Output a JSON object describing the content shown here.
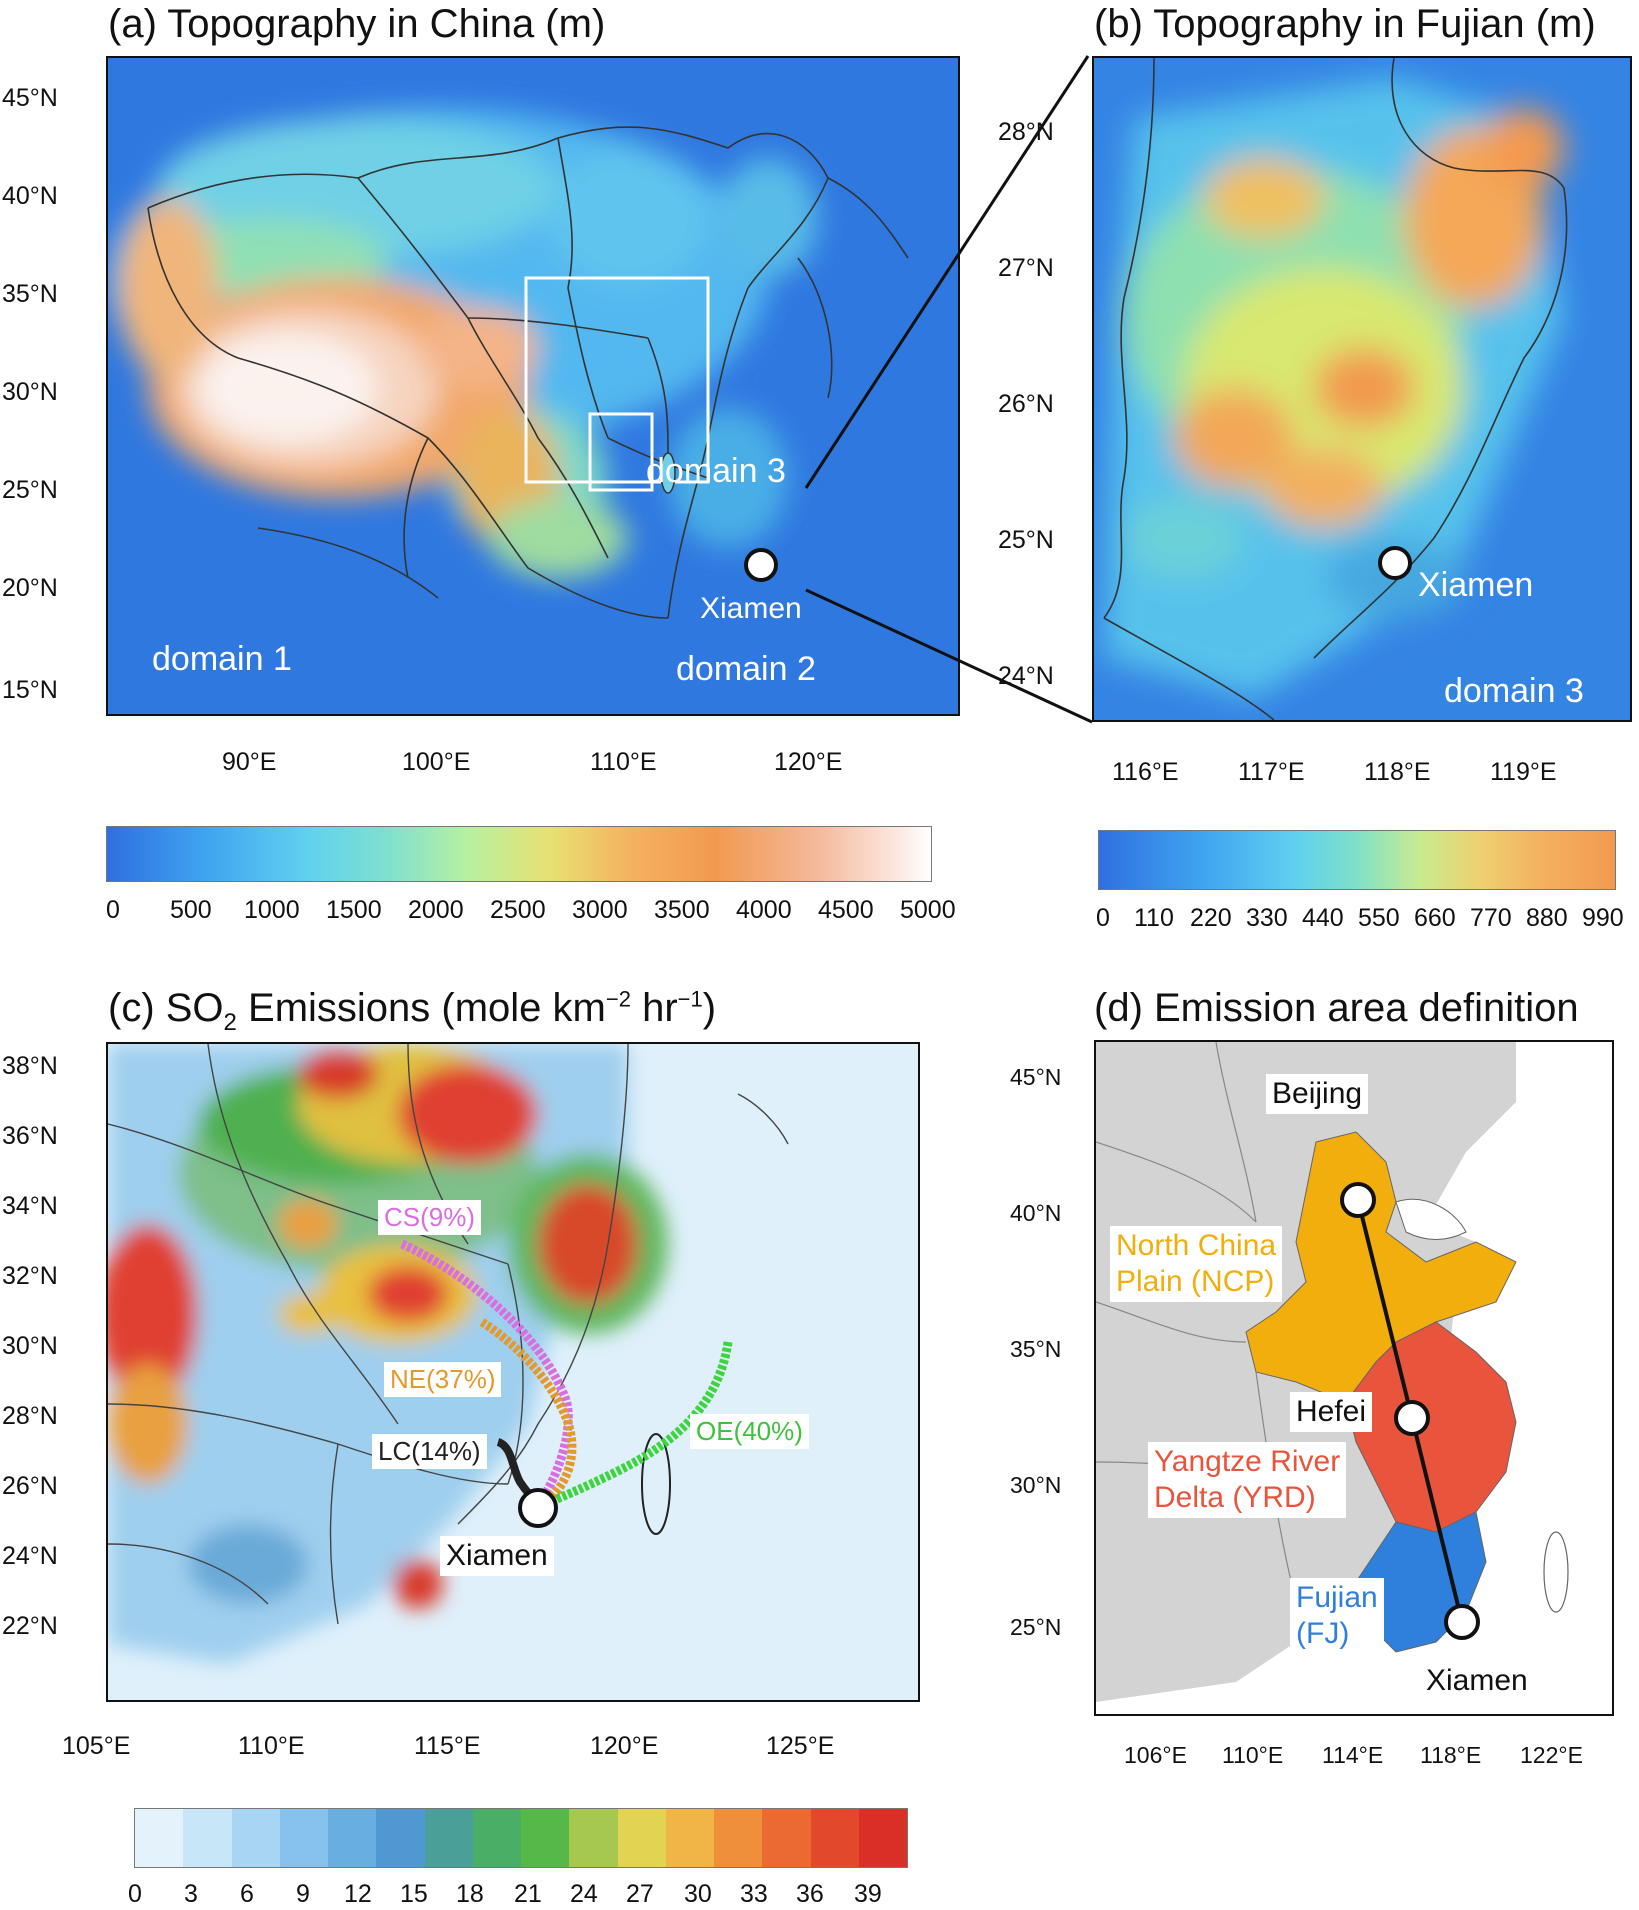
{
  "panel_a": {
    "title": "(a) Topography in China (m)",
    "lat_labels": [
      "45°N",
      "40°N",
      "35°N",
      "30°N",
      "25°N",
      "20°N",
      "15°N"
    ],
    "lon_labels": [
      "90°E",
      "100°E",
      "110°E",
      "120°E"
    ],
    "domain1_label": "domain 1",
    "domain2_label": "domain 2",
    "domain3_label": "domain 3",
    "city_label": "Xiamen",
    "colorbar_ticks": [
      "0",
      "500",
      "1000",
      "1500",
      "2000",
      "2500",
      "3000",
      "3500",
      "4000",
      "4500",
      "5000"
    ]
  },
  "panel_b": {
    "title": "(b) Topography in Fujian (m)",
    "lat_labels": [
      "28°N",
      "27°N",
      "26°N",
      "25°N",
      "24°N"
    ],
    "lon_labels": [
      "116°E",
      "117°E",
      "118°E",
      "119°E"
    ],
    "city_label": "Xiamen",
    "domain_label": "domain 3",
    "colorbar_ticks": [
      "0",
      "110",
      "220",
      "330",
      "440",
      "550",
      "660",
      "770",
      "880",
      "990"
    ]
  },
  "panel_c": {
    "title_prefix": "(c) SO",
    "title_sub": "2",
    "title_mid": " Emissions (mole km",
    "title_sup1": "−2",
    "title_mid2": " hr",
    "title_sup2": "−1",
    "title_end": ")",
    "lat_labels": [
      "38°N",
      "36°N",
      "34°N",
      "32°N",
      "30°N",
      "28°N",
      "26°N",
      "24°N",
      "22°N"
    ],
    "lon_labels": [
      "105°E",
      "110°E",
      "115°E",
      "120°E",
      "125°E"
    ],
    "city_label": "Xiamen",
    "trajectories": [
      {
        "label": "CS(9%)",
        "color": "#d86ee0"
      },
      {
        "label": "NE(37%)",
        "color": "#e39a2d"
      },
      {
        "label": "LC(14%)",
        "color": "#222222"
      },
      {
        "label": "OE(40%)",
        "color": "#3ed43e"
      }
    ],
    "colorbar_ticks": [
      "0",
      "3",
      "6",
      "9",
      "12",
      "15",
      "18",
      "21",
      "24",
      "27",
      "30",
      "33",
      "36",
      "39"
    ]
  },
  "panel_d": {
    "title": "(d) Emission area definition",
    "lat_labels": [
      "45°N",
      "40°N",
      "35°N",
      "30°N",
      "25°N"
    ],
    "lon_labels": [
      "106°E",
      "110°E",
      "114°E",
      "118°E",
      "122°E"
    ],
    "cities": [
      "Beijing",
      "Hefei",
      "Xiamen"
    ],
    "regions": [
      {
        "label_line1": "North China",
        "label_line2": "Plain (NCP)",
        "color": "#f2ae0c"
      },
      {
        "label_line1": "Yangtze River",
        "label_line2": "Delta (YRD)",
        "color": "#e8553c"
      },
      {
        "label_line1": "Fujian",
        "label_line2": "(FJ)",
        "color": "#2f7fdc"
      }
    ]
  }
}
